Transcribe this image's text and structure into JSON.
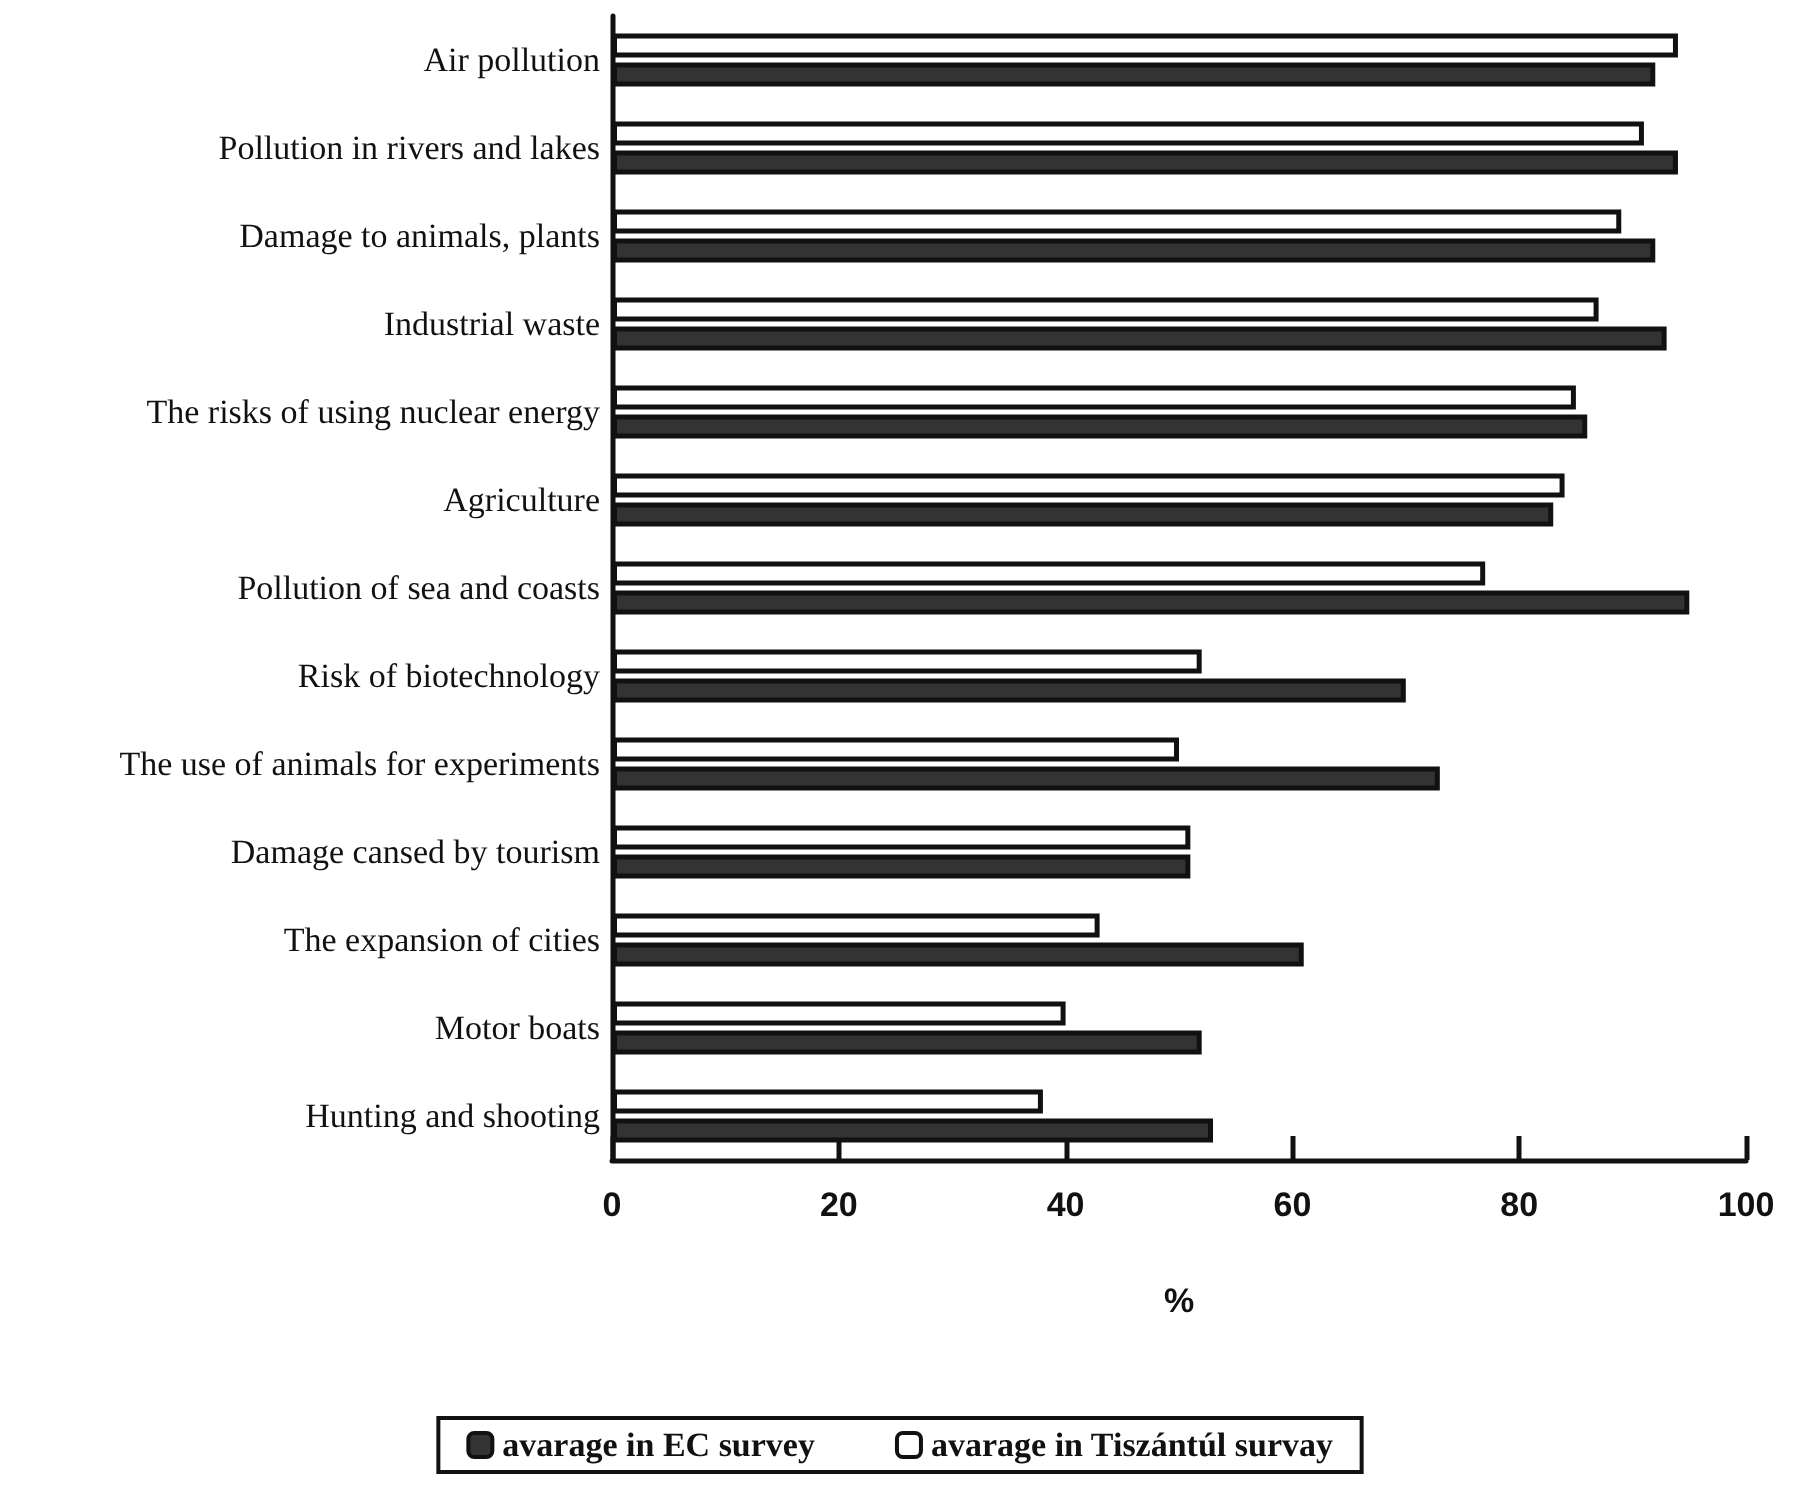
{
  "chart_data": {
    "type": "bar",
    "orientation": "horizontal",
    "xlabel": "%",
    "categories": [
      "Air pollution",
      "Pollution in rivers and lakes",
      "Damage to animals, plants",
      "Industrial waste",
      "The risks of using nuclear energy",
      "Agriculture",
      "Pollution of sea and coasts",
      "Risk of biotechnology",
      "The use of animals for experiments",
      "Damage cansed by tourism",
      "The expansion of cities",
      "Motor boats",
      "Hunting and shooting"
    ],
    "series": [
      {
        "name": "avarage in EC survey",
        "color": "#333333",
        "values": [
          92,
          94,
          92,
          93,
          86,
          83,
          95,
          70,
          73,
          51,
          61,
          52,
          53
        ]
      },
      {
        "name": "avarage in Tiszántúl survay",
        "color": "#ffffff",
        "values": [
          94,
          91,
          89,
          87,
          85,
          84,
          77,
          52,
          50,
          51,
          43,
          40,
          38
        ]
      }
    ],
    "xlim": [
      0,
      100
    ],
    "xticks": [
      0,
      20,
      40,
      60,
      80,
      100
    ],
    "grid": false,
    "legend": "bottom"
  }
}
